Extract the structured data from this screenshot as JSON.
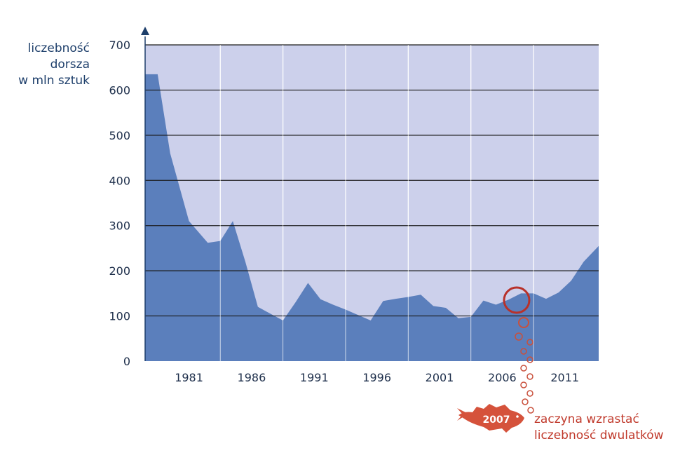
{
  "chart_data": {
    "type": "area",
    "ylabel_lines": [
      "liczebność",
      "dorsza",
      "w mln sztuk"
    ],
    "ylim": [
      0,
      700
    ],
    "yticks": [
      0,
      100,
      200,
      300,
      400,
      500,
      600,
      700
    ],
    "xlim": [
      1977.5,
      2013.7
    ],
    "xticks": [
      1981,
      1986,
      1991,
      1996,
      2001,
      2006,
      2011
    ],
    "x": [
      1977.5,
      1978.5,
      1979.5,
      1981.0,
      1982.5,
      1983.5,
      1984.5,
      1985.5,
      1986.5,
      1987.5,
      1988.5,
      1989.5,
      1990.5,
      1991.5,
      1992.5,
      1993.5,
      1994.5,
      1995.5,
      1996.5,
      1997.5,
      1998.5,
      1999.5,
      2000.5,
      2001.5,
      2002.5,
      2003.5,
      2004.5,
      2005.5,
      2006.5,
      2007.5,
      2008.5,
      2009.5,
      2010.5,
      2011.5,
      2012.5,
      2013.7
    ],
    "values": [
      635,
      635,
      460,
      310,
      262,
      266,
      310,
      220,
      120,
      105,
      90,
      130,
      173,
      137,
      125,
      114,
      102,
      90,
      133,
      138,
      142,
      147,
      122,
      118,
      95,
      98,
      134,
      125,
      136,
      150,
      150,
      138,
      152,
      178,
      220,
      255
    ],
    "grid": true,
    "annotation": {
      "year": "2007",
      "lines": [
        "zaczyna wzrastać",
        "liczebność dwulatków"
      ]
    },
    "colors": {
      "background": "#ccd0eb",
      "area": "#5b7fbc",
      "grid": "#1a1a1a",
      "annotation": "#c0392b",
      "fish": "#d5523b"
    }
  }
}
